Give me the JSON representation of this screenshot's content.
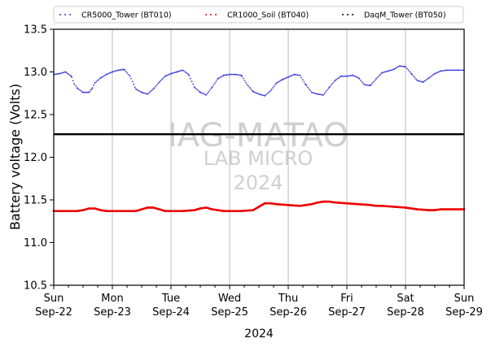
{
  "chart_data": {
    "type": "scatter",
    "ylabel": "Battery voltage (Volts)",
    "xlabel": "2024",
    "ylim": [
      10.5,
      13.5
    ],
    "yticks": [
      "10.5",
      "11.0",
      "11.5",
      "12.0",
      "12.5",
      "13.0",
      "13.5"
    ],
    "xlim_days": [
      0,
      7
    ],
    "xticks": [
      {
        "day": "Sun",
        "date": "Sep-22"
      },
      {
        "day": "Mon",
        "date": "Sep-23"
      },
      {
        "day": "Tue",
        "date": "Sep-24"
      },
      {
        "day": "Wed",
        "date": "Sep-25"
      },
      {
        "day": "Thu",
        "date": "Sep-26"
      },
      {
        "day": "Fri",
        "date": "Sep-27"
      },
      {
        "day": "Sat",
        "date": "Sep-28"
      },
      {
        "day": "Sun",
        "date": "Sep-29"
      }
    ],
    "grid": "vertical",
    "legend_position": "top",
    "series": [
      {
        "name": "CR5000_Tower (BT010)",
        "color": "#3a3adf",
        "x": [
          0,
          0.1,
          0.2,
          0.3,
          0.35,
          0.4,
          0.5,
          0.6,
          0.65,
          0.7,
          0.8,
          0.9,
          1.0,
          1.1,
          1.2,
          1.3,
          1.4,
          1.5,
          1.6,
          1.7,
          1.8,
          1.9,
          2.0,
          2.1,
          2.2,
          2.3,
          2.4,
          2.5,
          2.6,
          2.7,
          2.8,
          2.9,
          3.0,
          3.1,
          3.2,
          3.3,
          3.4,
          3.5,
          3.6,
          3.7,
          3.8,
          3.9,
          4.0,
          4.1,
          4.2,
          4.3,
          4.4,
          4.5,
          4.6,
          4.7,
          4.8,
          4.9,
          5.0,
          5.1,
          5.2,
          5.3,
          5.4,
          5.5,
          5.6,
          5.7,
          5.8,
          5.9,
          6.0,
          6.1,
          6.2,
          6.3,
          6.4,
          6.5,
          6.6,
          6.7,
          6.8,
          6.9,
          7.0
        ],
        "y": [
          12.97,
          12.98,
          13.0,
          12.95,
          12.86,
          12.81,
          12.76,
          12.76,
          12.8,
          12.87,
          12.93,
          12.97,
          13.0,
          13.02,
          13.03,
          12.95,
          12.8,
          12.76,
          12.74,
          12.8,
          12.88,
          12.95,
          12.98,
          13.0,
          13.02,
          12.97,
          12.82,
          12.76,
          12.73,
          12.82,
          12.92,
          12.96,
          12.97,
          12.97,
          12.96,
          12.85,
          12.77,
          12.74,
          12.72,
          12.78,
          12.87,
          12.91,
          12.94,
          12.97,
          12.96,
          12.85,
          12.76,
          12.74,
          12.73,
          12.82,
          12.9,
          12.95,
          12.95,
          12.96,
          12.93,
          12.85,
          12.84,
          12.92,
          12.99,
          13.01,
          13.03,
          13.07,
          13.06,
          12.98,
          12.9,
          12.88,
          12.93,
          12.98,
          13.01,
          13.02,
          13.02,
          13.02,
          13.02
        ]
      },
      {
        "name": "CR1000_Soil (BT040)",
        "color": "#ee0000",
        "x": [
          0,
          0.2,
          0.4,
          0.5,
          0.6,
          0.7,
          0.8,
          0.9,
          1.0,
          1.2,
          1.4,
          1.5,
          1.6,
          1.7,
          1.8,
          1.9,
          2.0,
          2.2,
          2.4,
          2.5,
          2.6,
          2.7,
          2.8,
          2.9,
          3.0,
          3.2,
          3.4,
          3.5,
          3.6,
          3.7,
          3.8,
          4.0,
          4.2,
          4.4,
          4.5,
          4.6,
          4.7,
          4.8,
          5.0,
          5.2,
          5.4,
          5.5,
          5.6,
          5.8,
          6.0,
          6.2,
          6.4,
          6.5,
          6.6,
          6.8,
          7.0
        ],
        "y": [
          11.37,
          11.37,
          11.37,
          11.38,
          11.4,
          11.4,
          11.38,
          11.37,
          11.37,
          11.37,
          11.37,
          11.39,
          11.41,
          11.41,
          11.39,
          11.37,
          11.37,
          11.37,
          11.38,
          11.4,
          11.41,
          11.39,
          11.38,
          11.37,
          11.37,
          11.37,
          11.38,
          11.42,
          11.46,
          11.46,
          11.45,
          11.44,
          11.43,
          11.45,
          11.47,
          11.48,
          11.48,
          11.47,
          11.46,
          11.45,
          11.44,
          11.43,
          11.43,
          11.42,
          11.41,
          11.39,
          11.38,
          11.38,
          11.39,
          11.39,
          11.39
        ]
      },
      {
        "name": "DaqM_Tower (BT050)",
        "color": "#000000",
        "x": [
          0,
          7
        ],
        "y": [
          12.27,
          12.27
        ]
      }
    ]
  },
  "watermark": {
    "line1": "IAG-MATAO",
    "line2": "LAB MICRO",
    "line3": "2024"
  }
}
